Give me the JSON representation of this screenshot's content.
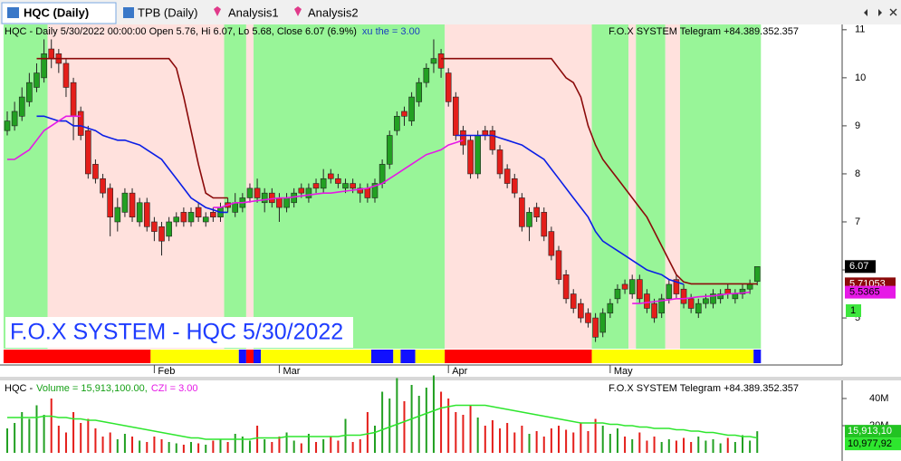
{
  "tabs": [
    "HQC (Daily)",
    "TPB (Daily)",
    "Analysis1",
    "Analysis2"
  ],
  "chart_data": [
    {
      "type": "candlestick",
      "title": "HQC - Daily 5/30/2022 00:00:00 Open 5.76, Hi 6.07, Lo 5.68, Close 6.07 (6.9%)",
      "indicator_label": "xu the = 3.00",
      "source": "F.O.X SYSTEM Telegram +84.389.352.357",
      "watermark": "F.O.X SYSTEM - HQC 5/30/2022",
      "signal_label": "1",
      "up_color": "#22a022",
      "down_color": "#e41e1a",
      "ylim": [
        4.36,
        11.11
      ],
      "yticks": [
        5,
        6,
        7,
        8,
        9,
        10,
        11
      ],
      "xticks": [
        {
          "value": 20,
          "label": "Feb"
        },
        {
          "value": 37,
          "label": "Mar"
        },
        {
          "value": 60,
          "label": "Apr"
        },
        {
          "value": 82,
          "label": "May"
        }
      ],
      "open": [
        8.9,
        9.0,
        9.2,
        9.5,
        9.8,
        10.0,
        10.6,
        10.5,
        10.3,
        9.9,
        9.3,
        8.9,
        8.2,
        7.9,
        7.7,
        7.0,
        7.2,
        7.6,
        7.0,
        7.4,
        7.0,
        6.9,
        6.7,
        7.0,
        7.2,
        7.0,
        7.3,
        7.0,
        7.2,
        7.1,
        7.4,
        7.2,
        7.3,
        7.5,
        7.7,
        7.4,
        7.6,
        7.5,
        7.3,
        7.4,
        7.7,
        7.5,
        7.8,
        7.7,
        8.0,
        7.9,
        7.7,
        7.8,
        7.7,
        7.7,
        7.5,
        7.8,
        8.2,
        8.9,
        9.3,
        9.1,
        9.5,
        9.9,
        10.3,
        10.5,
        10.1,
        9.6,
        8.9,
        8.7,
        8.0,
        8.9,
        8.9,
        8.5,
        8.1,
        7.9,
        7.5,
        6.9,
        7.3,
        7.2,
        6.8,
        6.4,
        5.9,
        5.5,
        5.3,
        5.1,
        5.0,
        4.7,
        5.1,
        5.4,
        5.7,
        5.5,
        5.8,
        5.5,
        5.3,
        5.1,
        5.4,
        5.8,
        5.6,
        5.4,
        5.1,
        5.3,
        5.3,
        5.4,
        5.6,
        5.4,
        5.5,
        5.6,
        5.76
      ],
      "high": [
        9.3,
        9.5,
        9.8,
        10.1,
        10.3,
        10.8,
        10.8,
        10.6,
        10.4,
        10.0,
        9.4,
        9.0,
        8.3,
        8.0,
        7.8,
        7.5,
        7.7,
        7.7,
        7.5,
        7.5,
        7.1,
        7.0,
        7.1,
        7.2,
        7.3,
        7.3,
        7.4,
        7.2,
        7.3,
        7.4,
        7.5,
        7.6,
        7.6,
        7.8,
        7.9,
        7.7,
        7.7,
        7.6,
        7.6,
        7.7,
        7.8,
        7.8,
        7.9,
        8.1,
        8.1,
        8.0,
        7.9,
        7.9,
        7.8,
        7.8,
        7.9,
        8.3,
        8.9,
        9.3,
        9.4,
        9.7,
        10.0,
        10.3,
        10.8,
        10.6,
        10.2,
        9.7,
        9.0,
        8.8,
        8.9,
        9.0,
        9.0,
        8.6,
        8.2,
        8.0,
        7.6,
        7.3,
        7.4,
        7.3,
        6.9,
        6.5,
        6.0,
        5.6,
        5.4,
        5.2,
        5.1,
        5.2,
        5.4,
        5.7,
        5.8,
        5.9,
        5.9,
        5.6,
        5.4,
        5.5,
        5.8,
        5.9,
        5.7,
        5.5,
        5.4,
        5.5,
        5.6,
        5.6,
        5.7,
        5.6,
        5.7,
        5.8,
        6.07
      ],
      "low": [
        8.8,
        8.9,
        9.1,
        9.4,
        9.7,
        9.9,
        10.2,
        10.1,
        9.6,
        8.7,
        8.7,
        7.9,
        7.8,
        7.5,
        6.7,
        6.8,
        7.1,
        7.0,
        6.9,
        6.8,
        6.6,
        6.3,
        6.6,
        6.9,
        6.9,
        6.9,
        7.0,
        6.9,
        7.0,
        7.0,
        7.2,
        7.1,
        7.2,
        7.4,
        7.4,
        7.2,
        7.3,
        7.0,
        7.2,
        7.3,
        7.5,
        7.4,
        7.6,
        7.6,
        7.8,
        7.7,
        7.6,
        7.6,
        7.4,
        7.4,
        7.4,
        7.7,
        8.1,
        8.8,
        9.0,
        9.0,
        9.4,
        9.8,
        10.1,
        10.0,
        9.4,
        8.7,
        8.4,
        7.9,
        7.9,
        8.7,
        8.4,
        7.9,
        7.7,
        7.5,
        6.8,
        6.6,
        7.0,
        6.6,
        6.2,
        5.7,
        5.3,
        5.1,
        4.9,
        4.8,
        4.5,
        4.6,
        5.0,
        5.3,
        5.5,
        5.4,
        5.3,
        5.1,
        4.9,
        5.0,
        5.3,
        5.4,
        5.2,
        5.1,
        5.0,
        5.2,
        5.2,
        5.3,
        5.4,
        5.3,
        5.4,
        5.5,
        5.68
      ],
      "close": [
        9.1,
        9.3,
        9.6,
        9.9,
        10.1,
        10.5,
        10.4,
        10.3,
        9.8,
        9.2,
        8.8,
        8.0,
        7.9,
        7.6,
        7.1,
        7.3,
        7.6,
        7.1,
        7.4,
        6.9,
        6.8,
        6.6,
        7.0,
        7.1,
        7.0,
        7.2,
        7.1,
        7.1,
        7.1,
        7.3,
        7.3,
        7.4,
        7.5,
        7.7,
        7.5,
        7.6,
        7.4,
        7.3,
        7.5,
        7.6,
        7.6,
        7.7,
        7.7,
        7.9,
        7.9,
        7.8,
        7.8,
        7.7,
        7.6,
        7.5,
        7.8,
        8.2,
        8.8,
        9.2,
        9.2,
        9.6,
        9.9,
        10.2,
        10.4,
        10.2,
        9.5,
        8.8,
        8.6,
        8.0,
        8.8,
        8.8,
        8.5,
        8.0,
        7.8,
        7.6,
        6.9,
        7.2,
        7.1,
        6.7,
        6.3,
        5.8,
        5.4,
        5.2,
        5.0,
        4.9,
        4.6,
        5.1,
        5.3,
        5.6,
        5.6,
        5.8,
        5.4,
        5.2,
        5.0,
        5.4,
        5.7,
        5.5,
        5.3,
        5.2,
        5.3,
        5.4,
        5.5,
        5.5,
        5.5,
        5.5,
        5.6,
        5.7,
        6.07
      ],
      "lines": [
        {
          "color": "#8b0a0a",
          "label_text_color": "#ffffff",
          "values": [
            null,
            null,
            null,
            null,
            10.4,
            10.4,
            10.4,
            10.4,
            10.4,
            10.4,
            10.4,
            10.4,
            10.4,
            10.4,
            10.4,
            10.4,
            10.4,
            10.4,
            10.4,
            10.4,
            10.4,
            10.4,
            10.4,
            10.2,
            9.6,
            8.9,
            8.2,
            7.6,
            7.5,
            7.5,
            7.5,
            null,
            null,
            null,
            null,
            null,
            null,
            null,
            null,
            null,
            null,
            null,
            null,
            null,
            null,
            null,
            null,
            null,
            null,
            null,
            null,
            null,
            null,
            null,
            null,
            null,
            null,
            null,
            null,
            10.4,
            10.4,
            10.4,
            10.4,
            10.4,
            10.4,
            10.4,
            10.4,
            10.4,
            10.4,
            10.4,
            10.4,
            10.4,
            10.4,
            10.4,
            10.4,
            10.2,
            10.0,
            9.9,
            9.6,
            9.0,
            8.6,
            8.3,
            8.1,
            7.9,
            7.7,
            7.5,
            7.3,
            7.1,
            6.8,
            6.5,
            6.2,
            5.9,
            5.75,
            5.71,
            5.71,
            5.71,
            5.71,
            5.71,
            5.71,
            5.71,
            5.71,
            5.71,
            5.71053
          ]
        },
        {
          "color": "#0a1ee6",
          "values": [
            null,
            null,
            null,
            null,
            9.2,
            9.2,
            9.15,
            9.1,
            9.1,
            9.0,
            9.0,
            8.95,
            8.9,
            8.8,
            8.75,
            8.7,
            8.7,
            8.65,
            8.6,
            8.5,
            8.4,
            8.3,
            8.1,
            7.9,
            7.7,
            7.5,
            7.4,
            7.3,
            7.25,
            7.2,
            7.2,
            null,
            null,
            null,
            null,
            null,
            null,
            null,
            null,
            null,
            null,
            null,
            null,
            null,
            null,
            null,
            null,
            null,
            null,
            null,
            null,
            null,
            null,
            null,
            null,
            null,
            null,
            null,
            null,
            null,
            null,
            8.8,
            8.8,
            8.8,
            8.8,
            8.8,
            8.8,
            8.75,
            8.7,
            8.65,
            8.6,
            8.5,
            8.4,
            8.3,
            8.1,
            7.9,
            7.7,
            7.5,
            7.3,
            7.1,
            6.8,
            6.6,
            6.5,
            6.4,
            6.3,
            6.2,
            6.1,
            6.0,
            5.95,
            5.9,
            5.8,
            5.75,
            5.7,
            null,
            null,
            null,
            null,
            null,
            null,
            null,
            null,
            null,
            null
          ]
        },
        {
          "color": "#e619e6",
          "label_text_color": "#000000",
          "values": [
            8.3,
            8.3,
            8.4,
            8.5,
            8.7,
            8.9,
            9.0,
            9.1,
            9.2,
            9.2,
            9.2,
            null,
            null,
            null,
            null,
            null,
            null,
            null,
            null,
            null,
            null,
            null,
            null,
            null,
            null,
            null,
            null,
            null,
            7.3,
            7.3,
            7.35,
            7.4,
            7.4,
            7.42,
            7.44,
            7.46,
            7.48,
            7.5,
            7.5,
            7.52,
            7.54,
            7.56,
            7.58,
            7.6,
            7.6,
            7.62,
            7.64,
            7.66,
            7.68,
            7.7,
            7.75,
            7.8,
            7.9,
            8.0,
            8.1,
            8.2,
            8.3,
            8.4,
            8.45,
            8.5,
            8.6,
            8.65,
            8.7,
            null,
            null,
            null,
            null,
            null,
            null,
            null,
            null,
            null,
            null,
            null,
            null,
            null,
            null,
            null,
            null,
            null,
            null,
            null,
            null,
            null,
            null,
            5.3,
            5.3,
            5.32,
            5.34,
            5.36,
            5.38,
            5.4,
            5.4,
            5.42,
            5.44,
            5.45,
            5.46,
            5.48,
            5.5,
            5.51,
            5.52,
            5.5365
          ]
        }
      ],
      "zones": [
        {
          "from": 0,
          "to": 5,
          "color": "#98f598"
        },
        {
          "from": 6,
          "to": 29,
          "color": "#ffe1dd"
        },
        {
          "from": 30,
          "to": 32,
          "color": "#98f598"
        },
        {
          "from": 33,
          "to": 33,
          "color": "#ffe1dd"
        },
        {
          "from": 34,
          "to": 59,
          "color": "#98f598"
        },
        {
          "from": 60,
          "to": 79,
          "color": "#ffe1dd"
        },
        {
          "from": 80,
          "to": 84,
          "color": "#98f598"
        },
        {
          "from": 85,
          "to": 85,
          "color": "#ffe1dd"
        },
        {
          "from": 86,
          "to": 89,
          "color": "#98f598"
        },
        {
          "from": 90,
          "to": 91,
          "color": "#ffe1dd"
        },
        {
          "from": 92,
          "to": 102,
          "color": "#98f598"
        }
      ],
      "strip": [
        {
          "from": 0,
          "to": 19,
          "color": "#ff0000"
        },
        {
          "from": 20,
          "to": 31,
          "color": "#ffff00"
        },
        {
          "from": 32,
          "to": 32,
          "color": "#1010ff"
        },
        {
          "from": 33,
          "to": 33,
          "color": "#ff0000"
        },
        {
          "from": 34,
          "to": 34,
          "color": "#1010ff"
        },
        {
          "from": 35,
          "to": 49,
          "color": "#ffff00"
        },
        {
          "from": 50,
          "to": 52,
          "color": "#1010ff"
        },
        {
          "from": 53,
          "to": 53,
          "color": "#ffff00"
        },
        {
          "from": 54,
          "to": 55,
          "color": "#1010ff"
        },
        {
          "from": 56,
          "to": 59,
          "color": "#ffff00"
        },
        {
          "from": 60,
          "to": 79,
          "color": "#ff0000"
        },
        {
          "from": 80,
          "to": 101,
          "color": "#ffff00"
        },
        {
          "from": 102,
          "to": 102,
          "color": "#1010ff"
        }
      ]
    },
    {
      "type": "volume",
      "symbol": "HQC -",
      "volume_label": "Volume = 15,913,100.00,",
      "czi_label": "CZI = 3.00",
      "source": "F.O.X SYSTEM Telegram +84.389.352.357",
      "ylim": [
        0,
        50
      ],
      "yticks": [
        {
          "value": 40,
          "label": "40M"
        },
        {
          "value": 20,
          "label": "20M"
        }
      ],
      "values": [
        18,
        22,
        30,
        25,
        35,
        28,
        40,
        20,
        15,
        30,
        22,
        25,
        18,
        12,
        15,
        10,
        14,
        12,
        9,
        8,
        12,
        10,
        8,
        7,
        6,
        8,
        7,
        6,
        9,
        10,
        8,
        14,
        12,
        9,
        20,
        10,
        8,
        12,
        15,
        9,
        7,
        14,
        8,
        10,
        12,
        9,
        25,
        8,
        10,
        30,
        20,
        45,
        40,
        55,
        38,
        50,
        42,
        48,
        57,
        45,
        40,
        30,
        28,
        35,
        26,
        20,
        24,
        18,
        22,
        15,
        20,
        14,
        16,
        12,
        18,
        20,
        17,
        15,
        22,
        16,
        25,
        20,
        14,
        18,
        12,
        10,
        15,
        9,
        12,
        8,
        10,
        9,
        11,
        8,
        12,
        9,
        10,
        7,
        11,
        8,
        13,
        9,
        15.9131
      ],
      "last_value_label": "15,913,10",
      "average": {
        "color": "#2ee62e",
        "values": [
          26,
          26,
          26,
          26,
          26,
          27,
          27,
          26,
          26,
          25,
          25,
          24,
          24,
          23,
          22,
          21,
          20,
          19,
          18,
          17,
          16,
          15,
          14,
          13,
          12,
          11,
          11,
          10,
          10,
          10,
          10,
          10,
          10,
          10,
          11,
          11,
          11,
          11,
          12,
          12,
          12,
          12,
          12,
          12,
          12,
          12,
          13,
          13,
          13,
          14,
          15,
          17,
          19,
          21,
          23,
          25,
          27,
          29,
          31,
          33,
          34,
          35,
          35,
          35,
          35,
          35,
          34,
          33,
          32,
          31,
          30,
          29,
          28,
          27,
          26,
          25,
          24,
          23,
          22,
          22,
          22,
          22,
          21,
          21,
          20,
          20,
          19,
          19,
          18,
          18,
          18,
          17,
          17,
          16,
          16,
          15,
          15,
          14,
          13,
          13,
          12,
          12,
          10.97792
        ],
        "last_value_label": "10,977,92"
      }
    }
  ]
}
